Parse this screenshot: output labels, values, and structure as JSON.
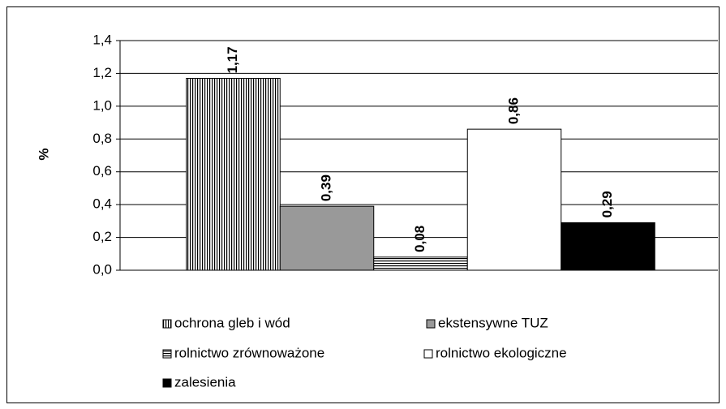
{
  "chart_data": {
    "type": "bar",
    "categories": [
      null
    ],
    "y_label": "%",
    "ylim": [
      0,
      1.4
    ],
    "yticks": [
      {
        "value": 0,
        "label": "0,0"
      },
      {
        "value": 0.2,
        "label": "0,2"
      },
      {
        "value": 0.4,
        "label": "0,4"
      },
      {
        "value": 0.6,
        "label": "0,6"
      },
      {
        "value": 0.8,
        "label": "0,8"
      },
      {
        "value": 1.0,
        "label": "1,0"
      },
      {
        "value": 1.2,
        "label": "1,2"
      },
      {
        "value": 1.4,
        "label": "1,4"
      }
    ],
    "grid": true,
    "legend": "bottom",
    "series": [
      {
        "name": "ochrona gleb i wód",
        "color": "#000000",
        "pattern": "vertical",
        "values": [
          1.17
        ],
        "value_labels": [
          "1,17"
        ]
      },
      {
        "name": "ekstensywne TUZ",
        "color": "#999999",
        "values": [
          0.39
        ],
        "value_labels": [
          "0,39"
        ]
      },
      {
        "name": "rolnictwo zrównoważone",
        "color": "#000000",
        "pattern": "horizontal",
        "values": [
          0.08
        ],
        "value_labels": [
          "0,08"
        ]
      },
      {
        "name": "rolnictwo ekologiczne",
        "color": "#ffffff",
        "values": [
          0.86
        ],
        "value_labels": [
          "0,86"
        ]
      },
      {
        "name": "zalesienia",
        "color": "#000000",
        "values": [
          0.29
        ],
        "value_labels": [
          "0,29"
        ]
      }
    ]
  }
}
